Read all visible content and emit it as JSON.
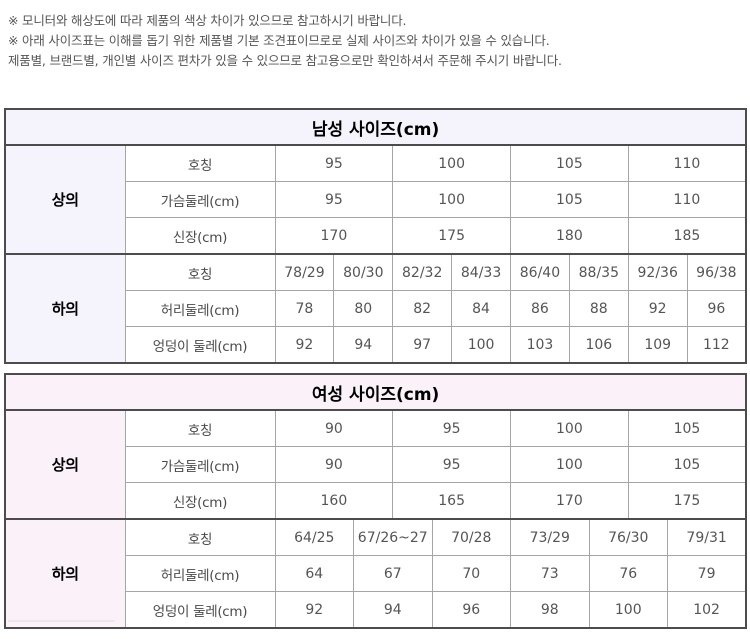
{
  "notices": {
    "line1": "※ 모니터와 해상도에 따라 제품의 색상 차이가 있으므로 참고하시기 바랍니다.",
    "line2": "※ 아래 사이즈표는 이해를 돕기 위한 제품별 기본 조견표이므로로 실제 사이즈와 차이가 있을 수 있습니다.",
    "line3": "제품별, 브랜드별, 개인별 사이즈 편차가 있을 수 있으므로 참고용으로만 확인하셔서 주문해 주시기 바랍니다."
  },
  "colors": {
    "men_accent_bg": "#f5f4fc",
    "women_accent_bg": "#fbf1f9",
    "outer_border": "#4c4c4c",
    "inner_border": "#a5a5a5",
    "notice_text": "#555555",
    "value_text": "#555555"
  },
  "tables": [
    {
      "id": "men",
      "title": "남성 사이즈(cm)",
      "accent_bg": "#f5f4fc",
      "sections": [
        {
          "label": "상의",
          "rows": [
            {
              "label": "호칭",
              "values": [
                "95",
                "100",
                "105",
                "110"
              ]
            },
            {
              "label": "가슴둘레(cm)",
              "values": [
                "95",
                "100",
                "105",
                "110"
              ]
            },
            {
              "label": "신장(cm)",
              "values": [
                "170",
                "175",
                "180",
                "185"
              ]
            }
          ]
        },
        {
          "label": "하의",
          "rows": [
            {
              "label": "호칭",
              "values": [
                "78/29",
                "80/30",
                "82/32",
                "84/33",
                "86/40",
                "88/35",
                "92/36",
                "96/38"
              ]
            },
            {
              "label": "허리둘레(cm)",
              "values": [
                "78",
                "80",
                "82",
                "84",
                "86",
                "88",
                "92",
                "96"
              ]
            },
            {
              "label": "엉덩이 둘레(cm)",
              "values": [
                "92",
                "94",
                "97",
                "100",
                "103",
                "106",
                "109",
                "112"
              ]
            }
          ]
        }
      ]
    },
    {
      "id": "women",
      "title": "여성 사이즈(cm)",
      "accent_bg": "#fbf1f9",
      "sections": [
        {
          "label": "상의",
          "rows": [
            {
              "label": "호칭",
              "values": [
                "90",
                "95",
                "100",
                "105"
              ]
            },
            {
              "label": "가슴둘레(cm)",
              "values": [
                "90",
                "95",
                "100",
                "105"
              ]
            },
            {
              "label": "신장(cm)",
              "values": [
                "160",
                "165",
                "170",
                "175"
              ]
            }
          ]
        },
        {
          "label": "하의",
          "rows": [
            {
              "label": "호칭",
              "values": [
                "64/25",
                "67/26~27",
                "70/28",
                "73/29",
                "76/30",
                "79/31"
              ]
            },
            {
              "label": "허리둘레(cm)",
              "values": [
                "64",
                "67",
                "70",
                "73",
                "76",
                "79"
              ]
            },
            {
              "label": "엉덩이 둘레(cm)",
              "values": [
                "92",
                "94",
                "96",
                "98",
                "100",
                "102"
              ]
            }
          ]
        }
      ]
    }
  ]
}
